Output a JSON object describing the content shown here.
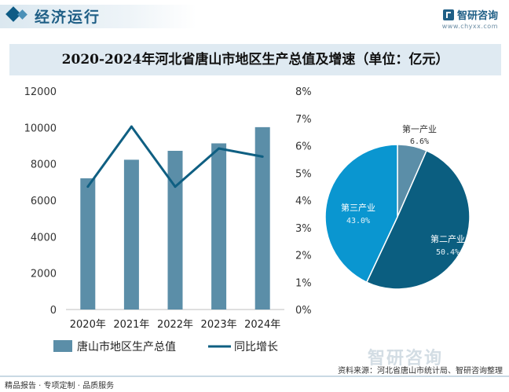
{
  "header": {
    "section_title": "经济运行",
    "brand_name": "智研咨询",
    "brand_url": "www.chyxx.com",
    "logo_icon": "zhiyan-logo-icon"
  },
  "chart_data": [
    {
      "type": "bar",
      "title": "2020-2024年河北省唐山市地区生产总值及增速（单位：亿元）",
      "categories": [
        "2020年",
        "2021年",
        "2022年",
        "2023年",
        "2024年"
      ],
      "series": [
        {
          "name": "唐山市地区生产总值",
          "kind": "bar",
          "axis": "left",
          "color": "#5b8ea8",
          "values": [
            7210,
            8230,
            8720,
            9130,
            10020
          ]
        },
        {
          "name": "同比增长",
          "kind": "line",
          "axis": "right",
          "color": "#0f5f82",
          "values": [
            4.5,
            6.7,
            4.5,
            5.9,
            5.6
          ]
        }
      ],
      "left_axis": {
        "ticks": [
          "0",
          "2000",
          "4000",
          "6000",
          "8000",
          "10000",
          "12000"
        ],
        "range": [
          0,
          12000
        ]
      },
      "right_axis": {
        "ticks": [
          "0%",
          "1%",
          "2%",
          "3%",
          "4%",
          "5%",
          "6%",
          "7%",
          "8%"
        ],
        "range": [
          0,
          8
        ]
      },
      "legend_position": "bottom",
      "grid": false
    },
    {
      "type": "pie",
      "slices": [
        {
          "name": "第一产业",
          "value": 6.6,
          "label": "6.6%",
          "color": "#5b8ea8"
        },
        {
          "name": "第二产业",
          "value": 50.4,
          "label": "50.4%",
          "color": "#0b5e80"
        },
        {
          "name": "第三产业",
          "value": 43.0,
          "label": "43.0%",
          "color": "#0a96d0"
        }
      ]
    }
  ],
  "footer": {
    "tagline": "精品报告 · 专项定制 · 品质服务",
    "source": "资料来源：河北省唐山市统计局、智研咨询整理",
    "logo_text": "智研咨询"
  }
}
